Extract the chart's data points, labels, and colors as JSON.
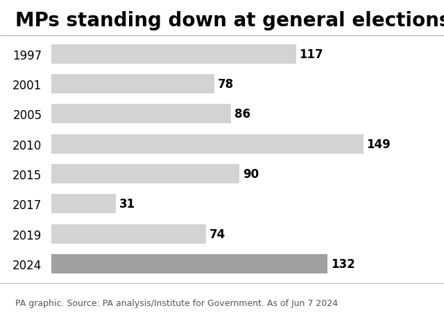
{
  "title": "MPs standing down at general elections",
  "years": [
    "1997",
    "2001",
    "2005",
    "2010",
    "2015",
    "2017",
    "2019",
    "2024"
  ],
  "values": [
    117,
    78,
    86,
    149,
    90,
    31,
    74,
    132
  ],
  "bar_colors": [
    "#d3d3d3",
    "#d3d3d3",
    "#d3d3d3",
    "#d3d3d3",
    "#d3d3d3",
    "#d3d3d3",
    "#d3d3d3",
    "#a0a0a0"
  ],
  "caption": "PA graphic. Source: PA analysis/Institute for Government. As of Jun 7 2024",
  "xlim": [
    0,
    160
  ],
  "title_fontsize": 20,
  "label_fontsize": 12,
  "caption_fontsize": 9,
  "bar_height": 0.65,
  "background_color": "#ffffff",
  "title_color": "#000000",
  "label_color": "#000000",
  "year_fontsize": 12,
  "line_color": "#bbbbbb"
}
